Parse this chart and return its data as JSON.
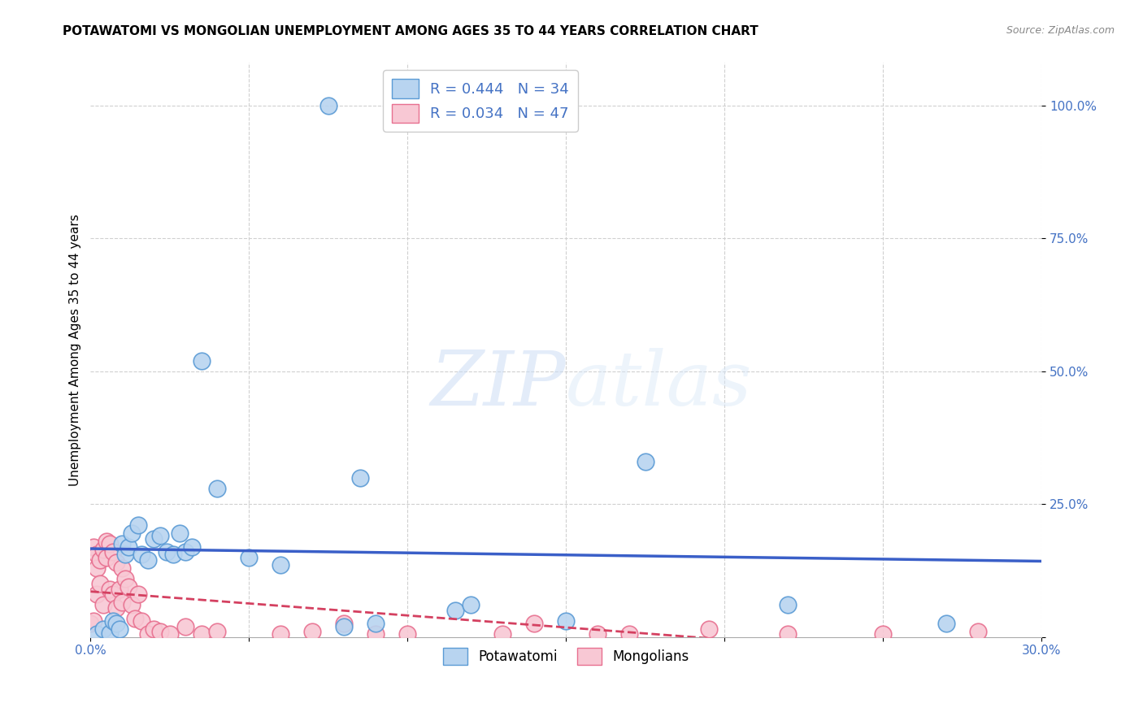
{
  "title": "POTAWATOMI VS MONGOLIAN UNEMPLOYMENT AMONG AGES 35 TO 44 YEARS CORRELATION CHART",
  "source": "Source: ZipAtlas.com",
  "ylabel_label": "Unemployment Among Ages 35 to 44 years",
  "xlim": [
    0.0,
    0.3
  ],
  "ylim": [
    0.0,
    1.08
  ],
  "x_ticks": [
    0.0,
    0.05,
    0.1,
    0.15,
    0.2,
    0.25,
    0.3
  ],
  "x_tick_labels": [
    "0.0%",
    "",
    "",
    "",
    "",
    "",
    "30.0%"
  ],
  "y_ticks": [
    0.0,
    0.25,
    0.5,
    0.75,
    1.0
  ],
  "y_tick_labels": [
    "",
    "25.0%",
    "50.0%",
    "75.0%",
    "100.0%"
  ],
  "grid_color": "#d0d0d0",
  "background_color": "#ffffff",
  "potawatomi_color": "#b8d4f0",
  "potawatomi_edge_color": "#5b9bd5",
  "mongolian_color": "#f8c8d4",
  "mongolian_edge_color": "#e87090",
  "potawatomi_R": 0.444,
  "potawatomi_N": 34,
  "mongolian_R": 0.034,
  "mongolian_N": 47,
  "trend_potawatomi_color": "#3a5fc8",
  "trend_mongolian_color": "#d44060",
  "legend_label_potawatomi": "Potawatomi",
  "legend_label_mongolian": "Mongolians",
  "watermark_zip": "ZIP",
  "watermark_atlas": "atlas",
  "potawatomi_x": [
    0.002,
    0.004,
    0.006,
    0.007,
    0.008,
    0.009,
    0.01,
    0.011,
    0.012,
    0.013,
    0.015,
    0.016,
    0.018,
    0.02,
    0.022,
    0.024,
    0.026,
    0.028,
    0.03,
    0.032,
    0.035,
    0.04,
    0.05,
    0.06,
    0.075,
    0.08,
    0.085,
    0.09,
    0.115,
    0.12,
    0.15,
    0.175,
    0.22,
    0.27
  ],
  "potawatomi_y": [
    0.005,
    0.015,
    0.008,
    0.03,
    0.025,
    0.015,
    0.175,
    0.155,
    0.17,
    0.195,
    0.21,
    0.155,
    0.145,
    0.185,
    0.19,
    0.16,
    0.155,
    0.195,
    0.16,
    0.17,
    0.52,
    0.28,
    0.15,
    0.135,
    1.0,
    0.02,
    0.3,
    0.025,
    0.05,
    0.06,
    0.03,
    0.33,
    0.06,
    0.025
  ],
  "mongolian_x": [
    0.0,
    0.001,
    0.001,
    0.002,
    0.002,
    0.002,
    0.003,
    0.003,
    0.004,
    0.004,
    0.005,
    0.005,
    0.006,
    0.006,
    0.007,
    0.007,
    0.008,
    0.008,
    0.009,
    0.01,
    0.01,
    0.011,
    0.012,
    0.013,
    0.014,
    0.015,
    0.016,
    0.018,
    0.02,
    0.022,
    0.025,
    0.03,
    0.035,
    0.04,
    0.06,
    0.07,
    0.08,
    0.09,
    0.1,
    0.13,
    0.14,
    0.16,
    0.17,
    0.195,
    0.22,
    0.25,
    0.28
  ],
  "mongolian_y": [
    0.025,
    0.03,
    0.17,
    0.155,
    0.13,
    0.08,
    0.145,
    0.1,
    0.165,
    0.06,
    0.18,
    0.15,
    0.175,
    0.09,
    0.16,
    0.08,
    0.14,
    0.055,
    0.09,
    0.13,
    0.065,
    0.11,
    0.095,
    0.06,
    0.035,
    0.08,
    0.03,
    0.005,
    0.015,
    0.01,
    0.005,
    0.02,
    0.005,
    0.01,
    0.005,
    0.01,
    0.025,
    0.005,
    0.005,
    0.005,
    0.025,
    0.005,
    0.005,
    0.015,
    0.005,
    0.005,
    0.01
  ]
}
